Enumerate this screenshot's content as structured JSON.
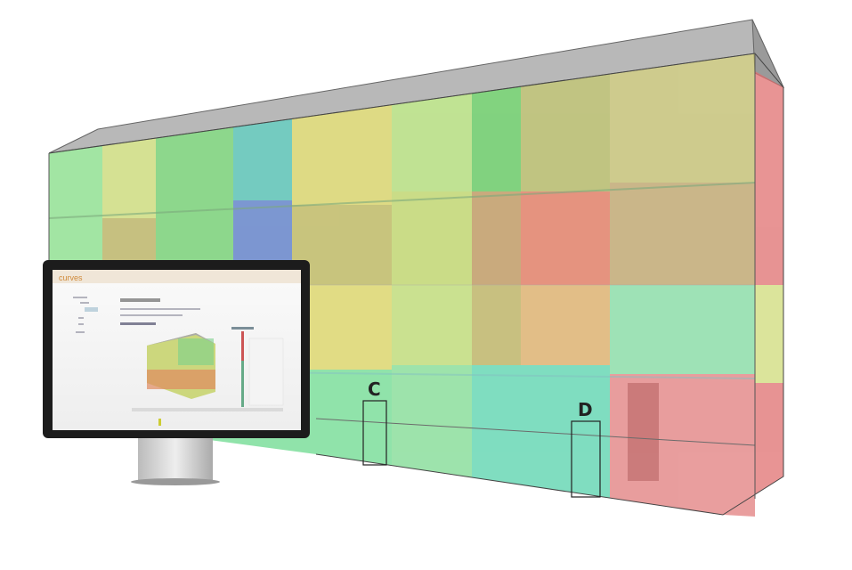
{
  "labels": {
    "c": "C",
    "d": "D"
  },
  "monitor": {
    "logo": "curves"
  },
  "colors": {
    "roof": "#b8b8b8",
    "green": "#5fd36a",
    "yellow": "#d7d75a",
    "olive": "#b5b04a",
    "teal": "#3fc2a8",
    "blue": "#4a6fc0",
    "red": "#e06a6a",
    "orange": "#e08a55"
  }
}
